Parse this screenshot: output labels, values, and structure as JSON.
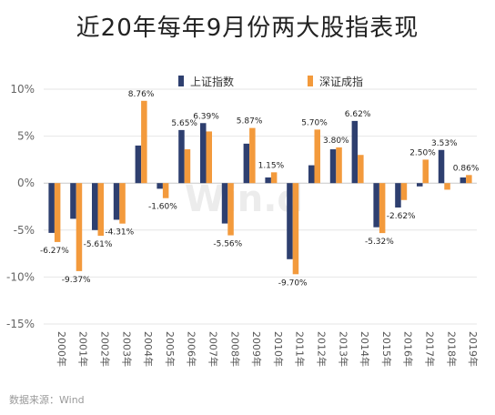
{
  "chart_data": {
    "type": "bar",
    "title": "近20年每年9月份两大股指表现",
    "source": "数据来源：Wind",
    "watermark": "Win.d",
    "categories": [
      "2000年",
      "2001年",
      "2002年",
      "2003年",
      "2004年",
      "2005年",
      "2006年",
      "2007年",
      "2008年",
      "2009年",
      "2010年",
      "2011年",
      "2012年",
      "2013年",
      "2014年",
      "2015年",
      "2016年",
      "2017年",
      "2018年",
      "2019年"
    ],
    "series": [
      {
        "name": "上证指数",
        "color": "#2e3f6f",
        "values": [
          -5.3,
          -3.8,
          -5.0,
          -3.9,
          4.0,
          -0.6,
          5.65,
          6.39,
          -4.3,
          4.2,
          0.6,
          -8.1,
          1.9,
          3.6,
          6.62,
          -4.7,
          -2.6,
          -0.35,
          3.53,
          0.6
        ]
      },
      {
        "name": "深证成指",
        "color": "#f39a3c",
        "values": [
          -6.27,
          -9.37,
          -5.61,
          -4.31,
          8.76,
          -1.6,
          3.6,
          5.5,
          -5.56,
          5.87,
          1.15,
          -9.7,
          5.7,
          3.8,
          3.0,
          -5.32,
          -1.8,
          2.5,
          -0.7,
          0.86
        ]
      }
    ],
    "data_labels": [
      {
        "category": "2000年",
        "text": "-6.27%"
      },
      {
        "category": "2001年",
        "text": "-9.37%"
      },
      {
        "category": "2002年",
        "text": "-5.61%"
      },
      {
        "category": "2003年",
        "text": "-4.31%"
      },
      {
        "category": "2004年",
        "text": "8.76%"
      },
      {
        "category": "2005年",
        "text": "-1.60%"
      },
      {
        "category": "2006年",
        "text": "5.65%"
      },
      {
        "category": "2007年",
        "text": "6.39%"
      },
      {
        "category": "2008年",
        "text": "-5.56%"
      },
      {
        "category": "2009年",
        "text": "5.87%"
      },
      {
        "category": "2010年",
        "text": "1.15%"
      },
      {
        "category": "2011年",
        "text": "-9.70%"
      },
      {
        "category": "2012年",
        "text": "5.70%"
      },
      {
        "category": "2013年",
        "text": "3.80%"
      },
      {
        "category": "2014年",
        "text": "6.62%"
      },
      {
        "category": "2015年",
        "text": "-5.32%"
      },
      {
        "category": "2016年",
        "text": "-2.62%"
      },
      {
        "category": "2017年",
        "text": "2.50%"
      },
      {
        "category": "2018年",
        "text": "3.53%"
      },
      {
        "category": "2019年",
        "text": "0.86%"
      }
    ],
    "y_ticks": [
      "10%",
      "5%",
      "0%",
      "-5%",
      "-10%",
      "-15%"
    ],
    "y_tick_values": [
      10,
      5,
      0,
      -5,
      -10,
      -15
    ],
    "ylim": [
      -15,
      10
    ],
    "grid": true,
    "legend_position": "top"
  }
}
